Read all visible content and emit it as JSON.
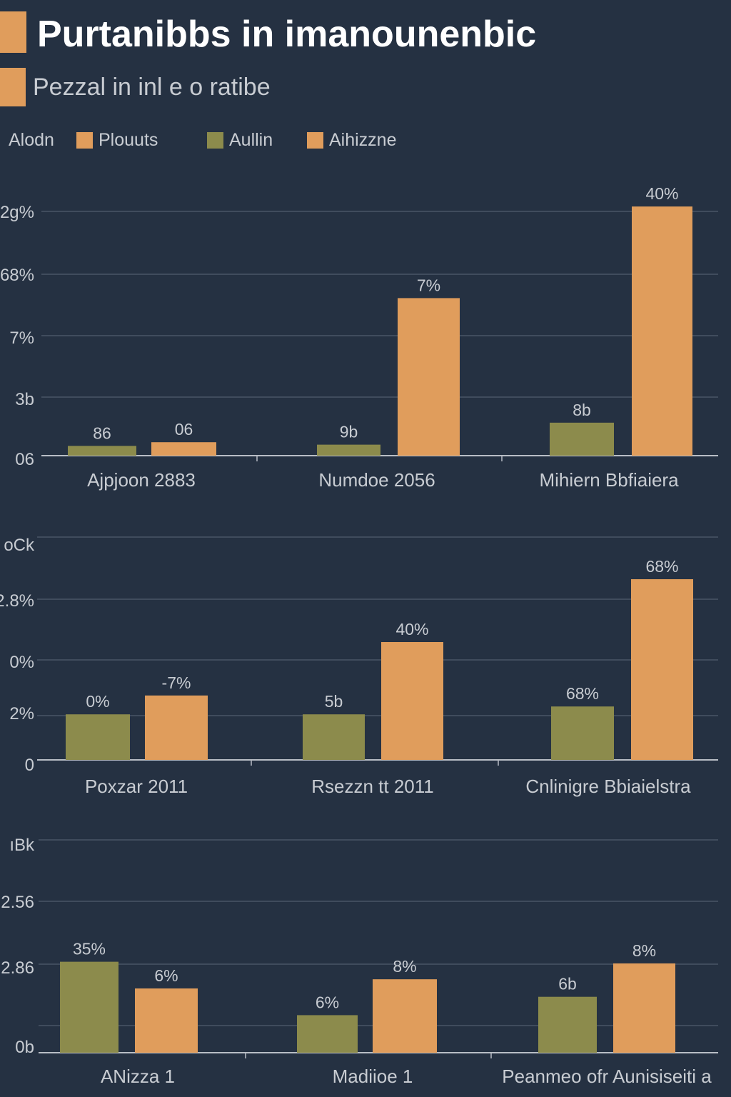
{
  "colors": {
    "background": "#253142",
    "series_a": "#8c8b4c",
    "series_b": "#e09d5c",
    "grid": "#4a5566",
    "text": "#c8ccd2"
  },
  "header": {
    "title": "Purtanibbs in imanounenbic",
    "subtitle": "Pezzal in inl e o ratibe"
  },
  "legend": {
    "intro": "Alodn",
    "items": [
      {
        "label": "Plouuts",
        "color": "#e09d5c"
      },
      {
        "label": "Aullin",
        "color": "#8c8b4c"
      },
      {
        "label": "Aihizzne",
        "color": "#e09d5c"
      }
    ]
  },
  "chart_data": [
    {
      "type": "bar",
      "categories": [
        "Ajpjoon 2883",
        "Numdoe 2056",
        "Mihiern Bbfiaiera"
      ],
      "series": [
        {
          "values": [
            0.8,
            0.9,
            2.7
          ]
        },
        {
          "values": [
            1.1,
            12.9,
            20.4
          ]
        }
      ],
      "value_labels": [
        [
          "86",
          "9b",
          "8b"
        ],
        [
          "06",
          "7%",
          "40%"
        ]
      ],
      "yticks": [
        "2g%",
        "68%",
        "7%",
        "3b",
        "06"
      ],
      "ylim": [
        0,
        20
      ],
      "grid": true
    },
    {
      "type": "bar",
      "categories": [
        "Poxzar 2011",
        "Rsezzn tt 2011",
        "Cnlinigre Bbiaielstra"
      ],
      "series": [
        {
          "values": [
            2.9,
            2.9,
            3.4
          ]
        },
        {
          "values": [
            4.1,
            7.5,
            11.5
          ]
        }
      ],
      "value_labels": [
        [
          "0%",
          "5b",
          "68%"
        ],
        [
          "-7%",
          "40%",
          "68%"
        ]
      ],
      "yticks": [
        "oCk",
        "2.8%",
        "0%",
        "2%",
        "0"
      ],
      "ylim": [
        0,
        14
      ],
      "grid": true
    },
    {
      "type": "bar",
      "categories": [
        "ANizza 1",
        "Madiioe 1",
        "Peanmeo ofr Aunisiseiti a"
      ],
      "series": [
        {
          "values": [
            10.9,
            4.5,
            6.7
          ]
        },
        {
          "values": [
            7.7,
            8.8,
            10.7
          ]
        }
      ],
      "value_labels": [
        [
          "35%",
          "6%",
          "6b"
        ],
        [
          "6%",
          "8%",
          "8%"
        ]
      ],
      "yticks": [
        "ıBk",
        "2.56",
        "2.86",
        "0b"
      ],
      "ylim": [
        0,
        25.5
      ],
      "grid": true
    }
  ]
}
